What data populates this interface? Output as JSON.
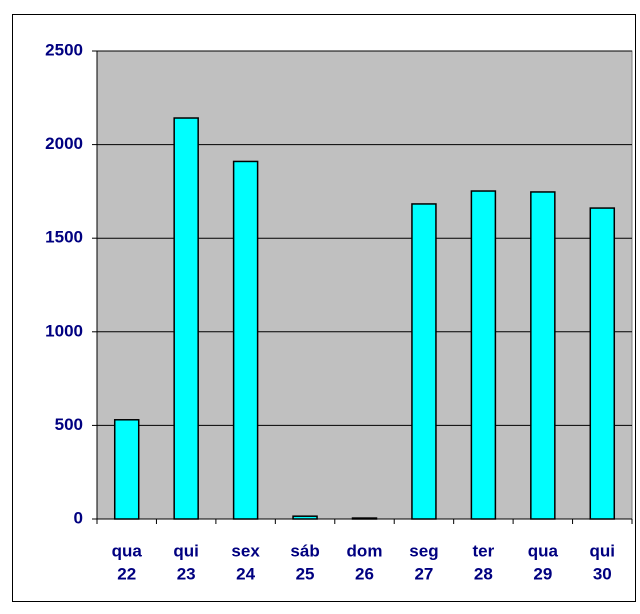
{
  "chart_data": {
    "type": "bar",
    "categories": [
      [
        "qua",
        "22"
      ],
      [
        "qui",
        "23"
      ],
      [
        "sex",
        "24"
      ],
      [
        "sáb",
        "25"
      ],
      [
        "dom",
        "26"
      ],
      [
        "seg",
        "27"
      ],
      [
        "ter",
        "28"
      ],
      [
        "qua",
        "29"
      ],
      [
        "qui",
        "30"
      ]
    ],
    "values": [
      530,
      2142,
      1910,
      15,
      5,
      1683,
      1752,
      1747,
      1661
    ],
    "color": "#00ffff",
    "ylim": [
      0,
      2500
    ],
    "yticks": [
      0,
      500,
      1000,
      1500,
      2000,
      2500
    ],
    "grid": true
  }
}
